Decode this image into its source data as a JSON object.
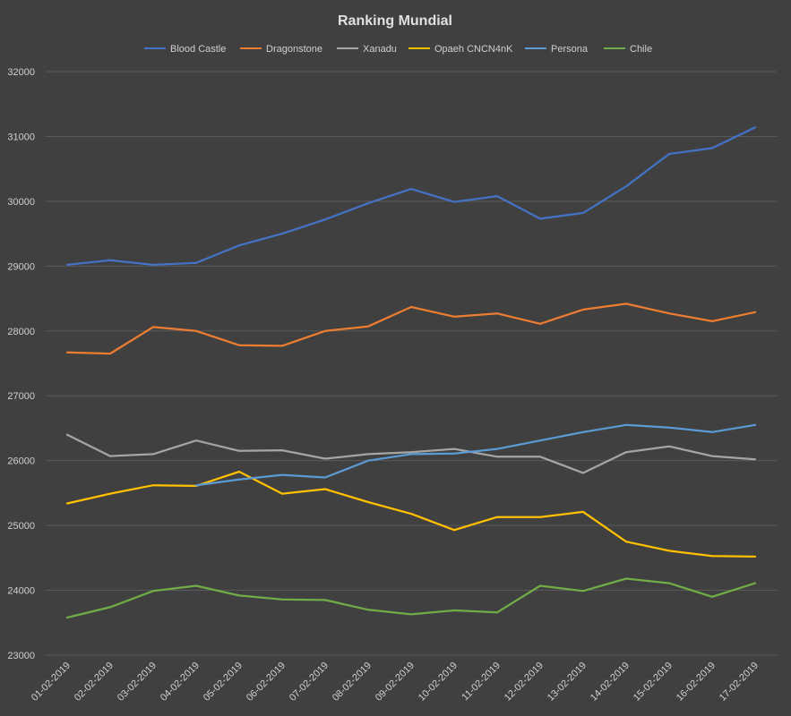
{
  "chart_data": {
    "type": "line",
    "title": "Ranking Mundial",
    "xlabel": "",
    "ylabel": "",
    "ylim": [
      23000,
      32000
    ],
    "yticks": [
      23000,
      24000,
      25000,
      26000,
      27000,
      28000,
      29000,
      30000,
      31000,
      32000
    ],
    "grid": true,
    "legend_position": "top",
    "categories": [
      "01-02-2019",
      "02-02-2019",
      "03-02-2019",
      "04-02-2019",
      "05-02-2019",
      "06-02-2019",
      "07-02-2019",
      "08-02-2019",
      "09-02-2019",
      "10-02-2019",
      "11-02-2019",
      "12-02-2019",
      "13-02-2019",
      "14-02-2019",
      "15-02-2019",
      "16-02-2019",
      "17-02-2019"
    ],
    "series": [
      {
        "name": "Blood Castle",
        "color": "#4472c4",
        "values": [
          29020,
          29090,
          29020,
          29050,
          29320,
          29500,
          29720,
          29970,
          30190,
          29990,
          30080,
          29730,
          29820,
          30230,
          30730,
          30820,
          31140
        ]
      },
      {
        "name": "Dragonstone",
        "color": "#ed7d31",
        "values": [
          27670,
          27650,
          28060,
          28000,
          27780,
          27770,
          28000,
          28070,
          28370,
          28220,
          28270,
          28110,
          28330,
          28420,
          28270,
          28150,
          28290
        ]
      },
      {
        "name": "Xanadu",
        "color": "#a5a5a5",
        "values": [
          26400,
          26070,
          26100,
          26310,
          26150,
          26160,
          26030,
          26100,
          26130,
          26180,
          26060,
          26060,
          25810,
          26130,
          26220,
          26070,
          26020
        ]
      },
      {
        "name": "Opaeh CNCN4nK",
        "color": "#ffc000",
        "values": [
          25340,
          25490,
          25620,
          25610,
          25830,
          25490,
          25560,
          25360,
          25180,
          24930,
          25130,
          25130,
          25210,
          24750,
          24610,
          24530,
          24520
        ]
      },
      {
        "name": "Persona",
        "color": "#5b9bd5",
        "values": [
          null,
          null,
          null,
          25620,
          25710,
          25780,
          25740,
          26000,
          26100,
          26110,
          26180,
          26310,
          26440,
          26550,
          26510,
          26440,
          26550
        ]
      },
      {
        "name": "Chile",
        "color": "#70ad47",
        "values": [
          23580,
          23740,
          23990,
          24070,
          23920,
          23860,
          23850,
          23700,
          23630,
          23690,
          23660,
          24070,
          23990,
          24180,
          24110,
          23900,
          24110
        ]
      }
    ]
  }
}
